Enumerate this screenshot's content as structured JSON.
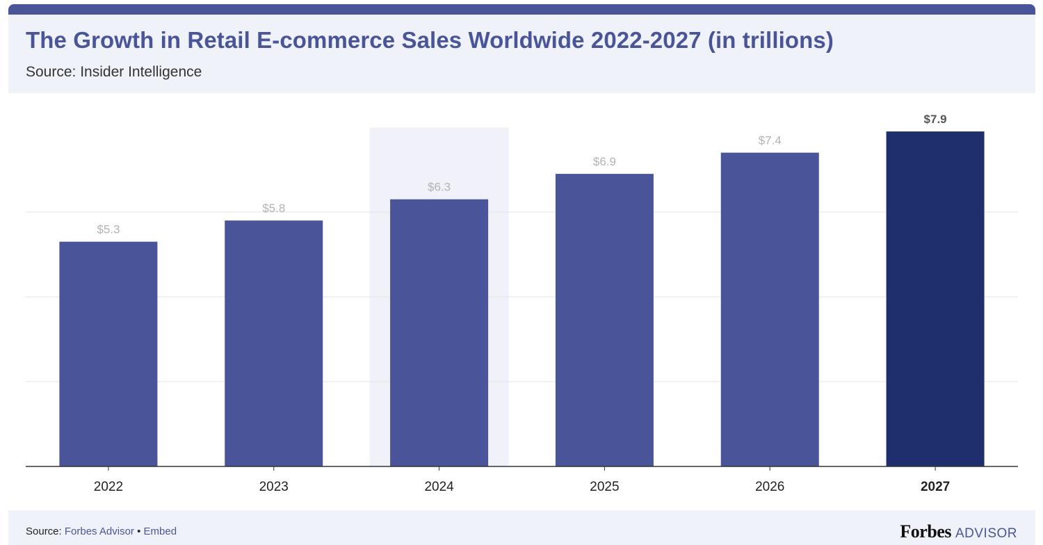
{
  "header": {
    "title": "The Growth in Retail E-commerce Sales Worldwide 2022-2027 (in trillions)",
    "subtitle": "Source: Insider Intelligence"
  },
  "footer": {
    "source_label": "Source:",
    "source_link": "Forbes Advisor",
    "separator": "•",
    "embed_link": "Embed",
    "logo_main": "Forbes",
    "logo_sub": "ADVISOR"
  },
  "colors": {
    "bar": "#4a5599",
    "bar_highlight": "#1f2f6e",
    "column_highlight_bg": "#f0f1f9",
    "value_label": "#b3b3b3",
    "value_label_highlight": "#555555"
  },
  "chart_data": {
    "type": "bar",
    "title": "The Growth in Retail E-commerce Sales Worldwide 2022-2027 (in trillions)",
    "categories": [
      "2022",
      "2023",
      "2024",
      "2025",
      "2026",
      "2027"
    ],
    "values": [
      5.3,
      5.8,
      6.3,
      6.9,
      7.4,
      7.9
    ],
    "value_labels": [
      "$5.3",
      "$5.8",
      "$6.3",
      "$6.9",
      "$7.4",
      "$7.9"
    ],
    "ylim": [
      0,
      8
    ],
    "gridlines": [
      2,
      4,
      6
    ],
    "grid": true,
    "highlight_background_category": "2024",
    "highlight_bar_category": "2027",
    "xlabel": "",
    "ylabel": ""
  }
}
